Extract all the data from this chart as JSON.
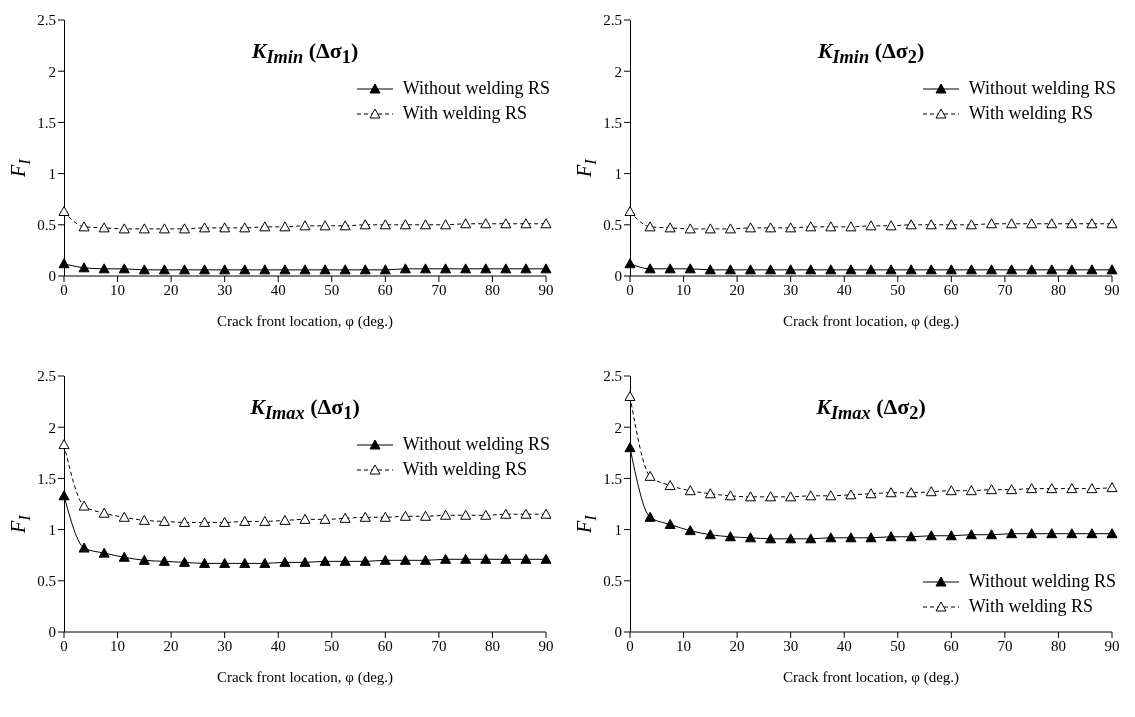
{
  "chart_data": [
    {
      "type": "line",
      "title": "K$_{Imin}$ (Δσ$_{1}$)",
      "xlabel": "Crack front location, φ (deg.)",
      "ylabel": "F$_{I}$",
      "x": [
        0,
        3.75,
        7.5,
        11.25,
        15,
        18.75,
        22.5,
        26.25,
        30,
        33.75,
        37.5,
        41.25,
        45,
        48.75,
        52.5,
        56.25,
        60,
        63.75,
        67.5,
        71.25,
        75,
        78.75,
        82.5,
        86.25,
        90
      ],
      "xlim": [
        0,
        90
      ],
      "xticks": [
        0,
        10,
        20,
        30,
        40,
        50,
        60,
        70,
        80,
        90
      ],
      "ylim": [
        0,
        2.5
      ],
      "yticks": [
        0,
        0.5,
        1,
        1.5,
        2,
        2.5
      ],
      "legend": "top right",
      "marker": "triangle",
      "series": [
        {
          "name": "Without welding RS",
          "color": "#000000",
          "line_style": "solid",
          "values": [
            0.12,
            0.08,
            0.07,
            0.07,
            0.06,
            0.06,
            0.06,
            0.06,
            0.06,
            0.06,
            0.06,
            0.06,
            0.06,
            0.06,
            0.06,
            0.06,
            0.06,
            0.07,
            0.07,
            0.07,
            0.07,
            0.07,
            0.07,
            0.07,
            0.07
          ]
        },
        {
          "name": "With welding RS",
          "color": "#000000",
          "line_style": "dashed",
          "values": [
            0.63,
            0.48,
            0.47,
            0.46,
            0.46,
            0.46,
            0.46,
            0.47,
            0.47,
            0.47,
            0.48,
            0.48,
            0.49,
            0.49,
            0.49,
            0.5,
            0.5,
            0.5,
            0.5,
            0.5,
            0.51,
            0.51,
            0.51,
            0.51,
            0.51
          ]
        }
      ]
    },
    {
      "type": "line",
      "title": "K$_{Imin}$ (Δσ$_{2}$)",
      "xlabel": "Crack front location, φ (deg.)",
      "ylabel": "F$_{I}$",
      "x": [
        0,
        3.75,
        7.5,
        11.25,
        15,
        18.75,
        22.5,
        26.25,
        30,
        33.75,
        37.5,
        41.25,
        45,
        48.75,
        52.5,
        56.25,
        60,
        63.75,
        67.5,
        71.25,
        75,
        78.75,
        82.5,
        86.25,
        90
      ],
      "xlim": [
        0,
        90
      ],
      "xticks": [
        0,
        10,
        20,
        30,
        40,
        50,
        60,
        70,
        80,
        90
      ],
      "ylim": [
        0,
        2.5
      ],
      "yticks": [
        0,
        0.5,
        1,
        1.5,
        2,
        2.5
      ],
      "legend": "top right",
      "marker": "triangle",
      "series": [
        {
          "name": "Without welding RS",
          "color": "#000000",
          "line_style": "solid",
          "values": [
            0.12,
            0.07,
            0.07,
            0.07,
            0.06,
            0.06,
            0.06,
            0.06,
            0.06,
            0.06,
            0.06,
            0.06,
            0.06,
            0.06,
            0.06,
            0.06,
            0.06,
            0.06,
            0.06,
            0.06,
            0.06,
            0.06,
            0.06,
            0.06,
            0.06
          ]
        },
        {
          "name": "With welding RS",
          "color": "#000000",
          "line_style": "dashed",
          "values": [
            0.63,
            0.48,
            0.47,
            0.46,
            0.46,
            0.46,
            0.47,
            0.47,
            0.47,
            0.48,
            0.48,
            0.48,
            0.49,
            0.49,
            0.5,
            0.5,
            0.5,
            0.5,
            0.51,
            0.51,
            0.51,
            0.51,
            0.51,
            0.51,
            0.51
          ]
        }
      ]
    },
    {
      "type": "line",
      "title": "K$_{Imax}$ (Δσ$_{1}$)",
      "xlabel": "Crack front location, φ (deg.)",
      "ylabel": "F$_{I}$",
      "x": [
        0,
        3.75,
        7.5,
        11.25,
        15,
        18.75,
        22.5,
        26.25,
        30,
        33.75,
        37.5,
        41.25,
        45,
        48.75,
        52.5,
        56.25,
        60,
        63.75,
        67.5,
        71.25,
        75,
        78.75,
        82.5,
        86.25,
        90
      ],
      "xlim": [
        0,
        90
      ],
      "xticks": [
        0,
        10,
        20,
        30,
        40,
        50,
        60,
        70,
        80,
        90
      ],
      "ylim": [
        0,
        2.5
      ],
      "yticks": [
        0,
        0.5,
        1,
        1.5,
        2,
        2.5
      ],
      "legend": "top right",
      "marker": "triangle",
      "series": [
        {
          "name": "Without welding RS",
          "color": "#000000",
          "line_style": "solid",
          "values": [
            1.33,
            0.82,
            0.77,
            0.73,
            0.7,
            0.69,
            0.68,
            0.67,
            0.67,
            0.67,
            0.67,
            0.68,
            0.68,
            0.69,
            0.69,
            0.69,
            0.7,
            0.7,
            0.7,
            0.71,
            0.71,
            0.71,
            0.71,
            0.71,
            0.71
          ]
        },
        {
          "name": "With welding RS",
          "color": "#000000",
          "line_style": "dashed",
          "values": [
            1.83,
            1.23,
            1.16,
            1.12,
            1.09,
            1.08,
            1.07,
            1.07,
            1.07,
            1.08,
            1.08,
            1.09,
            1.1,
            1.1,
            1.11,
            1.12,
            1.12,
            1.13,
            1.13,
            1.14,
            1.14,
            1.14,
            1.15,
            1.15,
            1.15
          ]
        }
      ]
    },
    {
      "type": "line",
      "title": "K$_{Imax}$ (Δσ$_{2}$)",
      "xlabel": "Crack front location, φ (deg.)",
      "ylabel": "F$_{I}$",
      "x": [
        0,
        3.75,
        7.5,
        11.25,
        15,
        18.75,
        22.5,
        26.25,
        30,
        33.75,
        37.5,
        41.25,
        45,
        48.75,
        52.5,
        56.25,
        60,
        63.75,
        67.5,
        71.25,
        75,
        78.75,
        82.5,
        86.25,
        90
      ],
      "xlim": [
        0,
        90
      ],
      "xticks": [
        0,
        10,
        20,
        30,
        40,
        50,
        60,
        70,
        80,
        90
      ],
      "ylim": [
        0,
        2.5
      ],
      "yticks": [
        0,
        0.5,
        1,
        1.5,
        2,
        2.5
      ],
      "legend": "bottom right",
      "marker": "triangle",
      "series": [
        {
          "name": "Without welding RS",
          "color": "#000000",
          "line_style": "solid",
          "values": [
            1.8,
            1.12,
            1.05,
            0.99,
            0.95,
            0.93,
            0.92,
            0.91,
            0.91,
            0.91,
            0.92,
            0.92,
            0.92,
            0.93,
            0.93,
            0.94,
            0.94,
            0.95,
            0.95,
            0.96,
            0.96,
            0.96,
            0.96,
            0.96,
            0.96
          ]
        },
        {
          "name": "With welding RS",
          "color": "#000000",
          "line_style": "dashed",
          "values": [
            2.3,
            1.52,
            1.43,
            1.38,
            1.35,
            1.33,
            1.32,
            1.32,
            1.32,
            1.33,
            1.33,
            1.34,
            1.35,
            1.36,
            1.36,
            1.37,
            1.38,
            1.38,
            1.39,
            1.39,
            1.4,
            1.4,
            1.4,
            1.4,
            1.41
          ]
        }
      ]
    }
  ]
}
